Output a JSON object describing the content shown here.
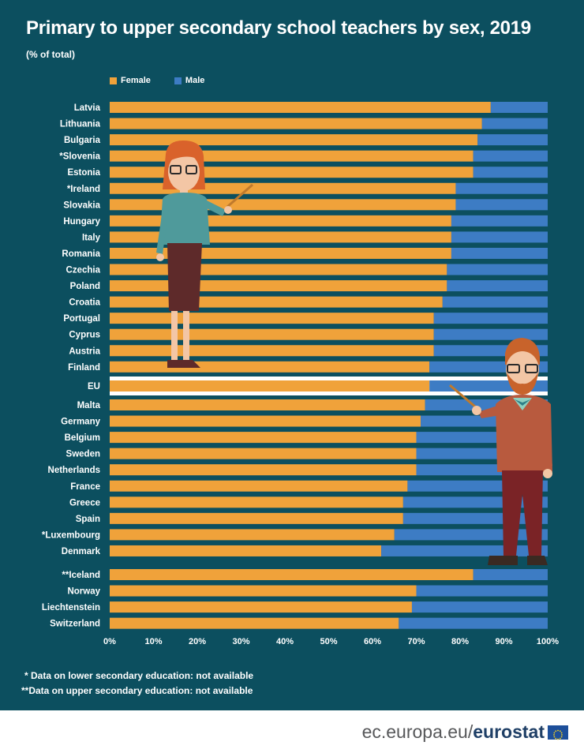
{
  "title": "Primary to upper secondary school teachers by sex, 2019",
  "subtitle": "(% of total)",
  "notes": [
    "* Data on lower secondary education: not available",
    "**Data on upper secondary education: not available"
  ],
  "brand": {
    "site": "ec.europa.eu/",
    "name": "eurostat"
  },
  "colors": {
    "female": "#f0a23a",
    "male": "#3d7cc4",
    "background": "#0c4f5f"
  },
  "chart_data": {
    "type": "bar",
    "orientation": "horizontal",
    "stacked": true,
    "xlim": [
      0,
      100
    ],
    "xticks": [
      "0%",
      "10%",
      "20%",
      "30%",
      "40%",
      "50%",
      "60%",
      "70%",
      "80%",
      "90%",
      "100%"
    ],
    "legend": [
      "Female",
      "Male"
    ],
    "legend_position": "top-left",
    "groups": [
      {
        "categories": [
          "Latvia",
          "Lithuania",
          "Bulgaria",
          "*Slovenia",
          "Estonia",
          "*Ireland",
          "Slovakia",
          "Hungary",
          "Italy",
          "Romania",
          "Czechia",
          "Poland",
          "Croatia",
          "Portugal",
          "Cyprus",
          "Austria",
          "Finland"
        ],
        "female": [
          87,
          85,
          84,
          83,
          83,
          79,
          79,
          78,
          78,
          78,
          77,
          77,
          76,
          74,
          74,
          74,
          73
        ]
      },
      {
        "categories": [
          "EU"
        ],
        "female": [
          73
        ],
        "highlight": true
      },
      {
        "categories": [
          "Malta",
          "Germany",
          "Belgium",
          "Sweden",
          "Netherlands",
          "France",
          "Greece",
          "Spain",
          "*Luxembourg",
          "Denmark"
        ],
        "female": [
          72,
          71,
          70,
          70,
          70,
          68,
          67,
          67,
          65,
          62
        ]
      },
      {
        "categories": [
          "**Iceland",
          "Norway",
          "Liechtenstein",
          "Switzerland"
        ],
        "female": [
          83,
          70,
          69,
          66
        ]
      }
    ]
  }
}
